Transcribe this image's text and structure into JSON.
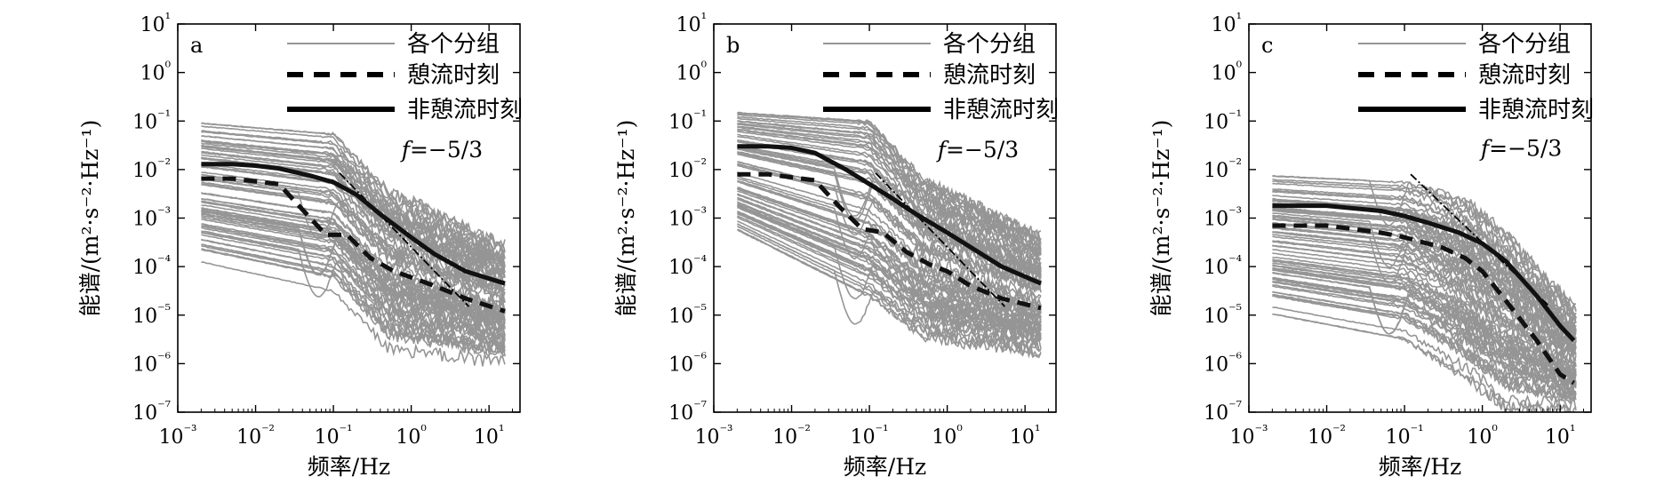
{
  "chart_data": [
    {
      "type": "line",
      "panel_label": "a",
      "xlabel": "频率/Hz",
      "ylabel": "能谱/(m²·s⁻²·Hz⁻¹)",
      "x_scale": "log",
      "y_scale": "log",
      "xlim": [
        0.001,
        25
      ],
      "ylim": [
        1e-07,
        10
      ],
      "x_ticks": [
        "10⁻³",
        "10⁻²",
        "10⁻¹",
        "10⁰",
        "10¹"
      ],
      "y_ticks": [
        "10⁻⁷",
        "10⁻⁶",
        "10⁻⁵",
        "10⁻⁴",
        "10⁻³",
        "10⁻²",
        "10⁻¹",
        "10⁰",
        "10¹"
      ],
      "grid": false,
      "legend": "top-right",
      "annotation": "f=−5/3",
      "reference_line": {
        "x": [
          0.12,
          5.5
        ],
        "y": [
          0.0085,
          1.5e-05
        ]
      },
      "group_envelope": {
        "x": [
          0.002,
          0.1,
          0.5,
          16
        ],
        "upper": [
          0.1,
          0.06,
          0.004,
          0.0003
        ],
        "lower": [
          0.00012,
          3e-05,
          2e-06,
          1e-06
        ]
      },
      "series": [
        {
          "name": "各个分组",
          "style": "gray-thin",
          "x": [],
          "y": []
        },
        {
          "name": "憩流时刻",
          "style": "dashed-thick",
          "x": [
            0.002,
            0.005,
            0.02,
            0.04,
            0.08,
            0.15,
            0.3,
            0.6,
            1,
            2,
            5,
            16
          ],
          "y": [
            0.0065,
            0.0065,
            0.005,
            0.0015,
            0.00045,
            0.00045,
            0.00015,
            8e-05,
            6e-05,
            4e-05,
            2.2e-05,
            1.2e-05
          ]
        },
        {
          "name": "非憩流时刻",
          "style": "solid-thick",
          "x": [
            0.002,
            0.005,
            0.01,
            0.02,
            0.05,
            0.1,
            0.2,
            0.4,
            1,
            2,
            5,
            16
          ],
          "y": [
            0.013,
            0.013,
            0.012,
            0.0105,
            0.0075,
            0.0055,
            0.003,
            0.0012,
            0.0004,
            0.00018,
            8e-05,
            4.5e-05
          ]
        }
      ]
    },
    {
      "type": "line",
      "panel_label": "b",
      "xlabel": "频率/Hz",
      "ylabel": "能谱/(m²·s⁻²·Hz⁻¹)",
      "x_scale": "log",
      "y_scale": "log",
      "xlim": [
        0.001,
        25
      ],
      "ylim": [
        1e-07,
        10
      ],
      "x_ticks": [
        "10⁻³",
        "10⁻²",
        "10⁻¹",
        "10⁰",
        "10¹"
      ],
      "y_ticks": [
        "10⁻⁷",
        "10⁻⁶",
        "10⁻⁵",
        "10⁻⁴",
        "10⁻³",
        "10⁻²",
        "10⁻¹",
        "10⁰",
        "10¹"
      ],
      "grid": false,
      "legend": "top-right",
      "annotation": "f=−5/3",
      "reference_line": {
        "x": [
          0.12,
          5.5
        ],
        "y": [
          0.0085,
          1.5e-05
        ]
      },
      "group_envelope": {
        "x": [
          0.002,
          0.1,
          0.5,
          16
        ],
        "upper": [
          0.15,
          0.1,
          0.006,
          0.0004
        ],
        "lower": [
          0.0005,
          2e-05,
          3e-06,
          1.5e-06
        ]
      },
      "series": [
        {
          "name": "各个分组",
          "style": "gray-thin",
          "x": [],
          "y": []
        },
        {
          "name": "憩流时刻",
          "style": "dashed-thick",
          "x": [
            0.002,
            0.005,
            0.02,
            0.04,
            0.08,
            0.15,
            0.3,
            0.6,
            1,
            2,
            5,
            16
          ],
          "y": [
            0.008,
            0.008,
            0.006,
            0.0018,
            0.0006,
            0.0005,
            0.0002,
            0.00011,
            8e-05,
            4e-05,
            2.2e-05,
            1.4e-05
          ]
        },
        {
          "name": "非憩流时刻",
          "style": "solid-thick",
          "x": [
            0.002,
            0.005,
            0.01,
            0.02,
            0.05,
            0.1,
            0.2,
            0.4,
            1,
            2,
            5,
            16
          ],
          "y": [
            0.03,
            0.03,
            0.028,
            0.022,
            0.01,
            0.005,
            0.0025,
            0.0012,
            0.0005,
            0.00025,
            0.0001,
            4.5e-05
          ]
        }
      ]
    },
    {
      "type": "line",
      "panel_label": "c",
      "xlabel": "频率/Hz",
      "ylabel": "能谱/(m²·s⁻²·Hz⁻¹)",
      "x_scale": "log",
      "y_scale": "log",
      "xlim": [
        0.001,
        25
      ],
      "ylim": [
        1e-07,
        10
      ],
      "x_ticks": [
        "10⁻³",
        "10⁻²",
        "10⁻¹",
        "10⁰",
        "10¹"
      ],
      "y_ticks": [
        "10⁻⁷",
        "10⁻⁶",
        "10⁻⁵",
        "10⁻⁴",
        "10⁻³",
        "10⁻²",
        "10⁻¹",
        "10⁰",
        "10¹"
      ],
      "grid": false,
      "legend": "top-right",
      "annotation": "f=−5/3",
      "reference_line": {
        "x": [
          0.12,
          7
        ],
        "y": [
          0.008,
          1.6e-05
        ]
      },
      "group_envelope": {
        "x": [
          0.002,
          0.1,
          0.6,
          2,
          15
        ],
        "upper": [
          0.008,
          0.006,
          0.0025,
          0.0005,
          1.5e-05
        ],
        "lower": [
          1e-05,
          3e-06,
          5e-07,
          1.2e-07,
          1e-07
        ]
      },
      "series": [
        {
          "name": "各个分组",
          "style": "gray-thin",
          "x": [],
          "y": []
        },
        {
          "name": "憩流时刻",
          "style": "dashed-thick",
          "x": [
            0.002,
            0.01,
            0.05,
            0.1,
            0.3,
            0.6,
            1,
            2,
            5,
            10,
            15
          ],
          "y": [
            0.0007,
            0.0007,
            0.0005,
            0.0004,
            0.00025,
            0.00015,
            8e-05,
            2e-05,
            3e-06,
            6e-07,
            4e-07
          ]
        },
        {
          "name": "非憩流时刻",
          "style": "solid-thick",
          "x": [
            0.002,
            0.01,
            0.05,
            0.1,
            0.2,
            0.5,
            1,
            2,
            5,
            10,
            15
          ],
          "y": [
            0.0018,
            0.0018,
            0.0014,
            0.0011,
            0.0008,
            0.0005,
            0.0003,
            0.00013,
            2.5e-05,
            6e-06,
            3e-06
          ]
        }
      ]
    }
  ]
}
